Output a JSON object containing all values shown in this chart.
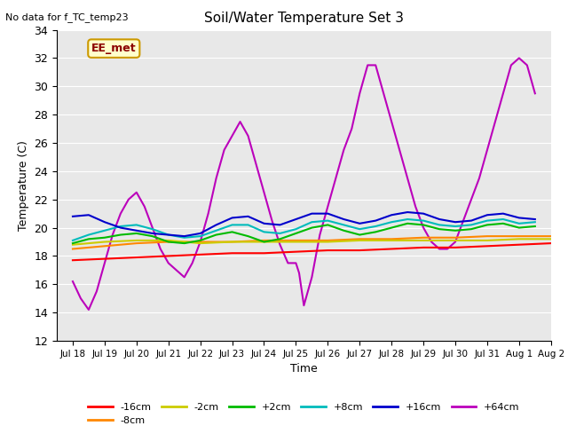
{
  "title": "Soil/Water Temperature Set 3",
  "subtitle": "No data for f_TC_temp23",
  "xlabel": "Time",
  "ylabel": "Temperature (C)",
  "ylim": [
    12,
    34
  ],
  "yticks": [
    12,
    14,
    16,
    18,
    20,
    22,
    24,
    26,
    28,
    30,
    32,
    34
  ],
  "xlim": [
    17.5,
    32.8
  ],
  "xtick_labels": [
    "Jul 18",
    "Jul 19",
    "Jul 20",
    "Jul 21",
    "Jul 22",
    "Jul 23",
    "Jul 24",
    "Jul 25",
    "Jul 26",
    "Jul 27",
    "Jul 28",
    "Jul 29",
    "Jul 30",
    "Jul 31",
    "Aug 1",
    "Aug 2"
  ],
  "xtick_positions": [
    18,
    19,
    20,
    21,
    22,
    23,
    24,
    25,
    26,
    27,
    28,
    29,
    30,
    31,
    32,
    33
  ],
  "annotation_text": "EE_met",
  "bg_color": "#e8e8e8",
  "colors": {
    "-16cm": "#ff0000",
    "-8cm": "#ff8800",
    "-2cm": "#cccc00",
    "+2cm": "#00bb00",
    "+8cm": "#00bbbb",
    "+16cm": "#0000cc",
    "+64cm": "#bb00bb"
  },
  "series": {
    "-16cm": {
      "x": [
        18,
        19,
        20,
        21,
        22,
        23,
        24,
        25,
        26,
        27,
        28,
        29,
        30,
        31,
        32,
        33
      ],
      "y": [
        17.7,
        17.8,
        17.9,
        18.0,
        18.1,
        18.2,
        18.2,
        18.3,
        18.4,
        18.4,
        18.5,
        18.6,
        18.6,
        18.7,
        18.8,
        18.9
      ]
    },
    "-8cm": {
      "x": [
        18,
        19,
        20,
        21,
        22,
        23,
        24,
        25,
        26,
        27,
        28,
        29,
        30,
        31,
        32,
        33
      ],
      "y": [
        18.5,
        18.7,
        18.9,
        19.0,
        19.0,
        19.0,
        19.1,
        19.1,
        19.1,
        19.2,
        19.2,
        19.3,
        19.3,
        19.4,
        19.4,
        19.4
      ]
    },
    "-2cm": {
      "x": [
        18,
        19,
        20,
        21,
        22,
        23,
        24,
        25,
        26,
        27,
        28,
        29,
        30,
        31,
        32,
        33
      ],
      "y": [
        18.8,
        19.0,
        19.1,
        19.1,
        18.9,
        19.0,
        19.0,
        19.0,
        19.0,
        19.1,
        19.1,
        19.1,
        19.1,
        19.1,
        19.2,
        19.2
      ]
    },
    "+2cm": {
      "x": [
        18,
        18.5,
        19,
        19.5,
        20,
        20.5,
        21,
        21.5,
        22,
        22.5,
        23,
        23.5,
        24,
        24.5,
        25,
        25.5,
        26,
        26.5,
        27,
        27.5,
        28,
        28.5,
        29,
        29.5,
        30,
        30.5,
        31,
        31.5,
        32,
        32.5
      ],
      "y": [
        18.9,
        19.2,
        19.3,
        19.5,
        19.6,
        19.4,
        19.0,
        18.9,
        19.1,
        19.5,
        19.7,
        19.4,
        19.0,
        19.2,
        19.6,
        20.0,
        20.2,
        19.8,
        19.5,
        19.7,
        20.0,
        20.3,
        20.2,
        19.9,
        19.8,
        19.9,
        20.2,
        20.3,
        20.0,
        20.1
      ]
    },
    "+8cm": {
      "x": [
        18,
        18.5,
        19,
        19.5,
        20,
        20.5,
        21,
        21.5,
        22,
        22.5,
        23,
        23.5,
        24,
        24.5,
        25,
        25.5,
        26,
        26.5,
        27,
        27.5,
        28,
        28.5,
        29,
        29.5,
        30,
        30.5,
        31,
        31.5,
        32,
        32.5
      ],
      "y": [
        19.1,
        19.5,
        19.8,
        20.1,
        20.2,
        19.9,
        19.5,
        19.3,
        19.4,
        19.8,
        20.2,
        20.2,
        19.7,
        19.6,
        19.9,
        20.4,
        20.5,
        20.2,
        19.9,
        20.1,
        20.4,
        20.6,
        20.5,
        20.2,
        20.1,
        20.2,
        20.5,
        20.6,
        20.3,
        20.4
      ]
    },
    "+16cm": {
      "x": [
        18,
        18.5,
        19,
        19.5,
        20,
        20.5,
        21,
        21.5,
        22,
        22.5,
        23,
        23.5,
        24,
        24.5,
        25,
        25.5,
        26,
        26.5,
        27,
        27.5,
        28,
        28.5,
        29,
        29.5,
        30,
        30.5,
        31,
        31.5,
        32,
        32.5
      ],
      "y": [
        20.8,
        20.9,
        20.4,
        20.0,
        19.8,
        19.6,
        19.5,
        19.4,
        19.6,
        20.2,
        20.7,
        20.8,
        20.3,
        20.2,
        20.6,
        21.0,
        21.0,
        20.6,
        20.3,
        20.5,
        20.9,
        21.1,
        21.0,
        20.6,
        20.4,
        20.5,
        20.9,
        21.0,
        20.7,
        20.6
      ]
    },
    "+64cm": {
      "x": [
        18.0,
        18.25,
        18.5,
        18.75,
        19.0,
        19.25,
        19.5,
        19.75,
        20.0,
        20.25,
        20.5,
        20.75,
        21.0,
        21.25,
        21.5,
        21.75,
        22.0,
        22.25,
        22.5,
        22.75,
        23.0,
        23.25,
        23.5,
        23.75,
        24.0,
        24.25,
        24.5,
        24.75,
        25.0,
        25.1,
        25.25,
        25.5,
        25.75,
        26.0,
        26.25,
        26.5,
        26.75,
        27.0,
        27.25,
        27.5,
        27.75,
        28.0,
        28.25,
        28.5,
        28.75,
        29.0,
        29.25,
        29.5,
        29.75,
        30.0,
        30.25,
        30.5,
        30.75,
        31.0,
        31.25,
        31.5,
        31.75,
        32.0,
        32.25,
        32.5
      ],
      "y": [
        16.2,
        15.0,
        14.2,
        15.5,
        17.5,
        19.5,
        21.0,
        22.0,
        22.5,
        21.5,
        20.0,
        18.5,
        17.5,
        17.0,
        16.5,
        17.5,
        19.0,
        21.0,
        23.5,
        25.5,
        26.5,
        27.5,
        26.5,
        24.5,
        22.5,
        20.5,
        18.8,
        17.5,
        17.5,
        16.8,
        14.5,
        16.5,
        19.5,
        21.5,
        23.5,
        25.5,
        27.0,
        29.5,
        31.5,
        31.5,
        29.5,
        27.5,
        25.5,
        23.5,
        21.5,
        20.0,
        19.0,
        18.5,
        18.5,
        19.0,
        20.5,
        22.0,
        23.5,
        25.5,
        27.5,
        29.5,
        31.5,
        32.0,
        31.5,
        29.5
      ]
    }
  }
}
